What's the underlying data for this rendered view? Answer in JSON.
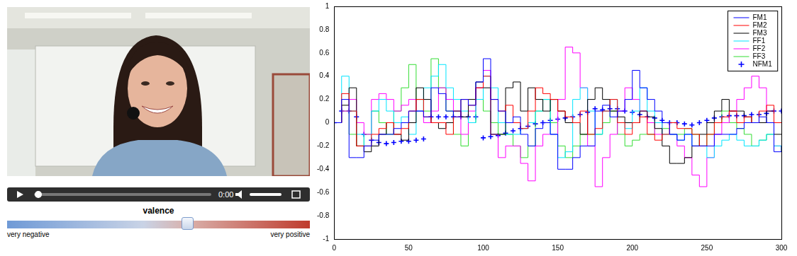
{
  "chart_data": {
    "type": "line",
    "x": [
      0,
      5,
      10,
      15,
      20,
      25,
      30,
      35,
      40,
      45,
      50,
      55,
      60,
      65,
      70,
      75,
      80,
      85,
      90,
      95,
      100,
      105,
      110,
      115,
      120,
      125,
      130,
      135,
      140,
      145,
      150,
      155,
      160,
      165,
      170,
      175,
      180,
      185,
      190,
      195,
      200,
      205,
      210,
      215,
      220,
      225,
      230,
      235,
      240,
      245,
      250,
      255,
      260,
      265,
      270,
      275,
      280,
      285,
      290,
      295,
      300
    ],
    "series": [
      {
        "name": "FM1",
        "color": "#0000ff",
        "line_style": "steps",
        "values": [
          0,
          0.2,
          -0.3,
          -0.3,
          -0.2,
          -0.15,
          -0.1,
          -0.1,
          -0.05,
          0,
          0.1,
          0.1,
          0.05,
          0.3,
          0.25,
          0.1,
          0.05,
          0.2,
          0.15,
          0.35,
          0.55,
          0.2,
          0.1,
          0,
          0.05,
          -0.1,
          -0.2,
          -0.05,
          0,
          -0.1,
          -0.4,
          -0.4,
          -0.3,
          -0.2,
          -0.2,
          0.1,
          0.15,
          0.05,
          0.1,
          0.2,
          0.45,
          0.3,
          0.2,
          0.1,
          0,
          -0.1,
          -0.15,
          -0.1,
          -0.2,
          -0.2,
          -0.2,
          -0.1,
          -0.1,
          -0.1,
          -0.05,
          0,
          0,
          0.05,
          0,
          -0.25,
          -0.2
        ]
      },
      {
        "name": "FM2",
        "color": "#ff0000",
        "line_style": "steps",
        "values": [
          0,
          0.25,
          0.1,
          -0.2,
          -0.2,
          -0.1,
          -0.05,
          0,
          -0.1,
          -0.05,
          0.1,
          0.2,
          0.05,
          0,
          0,
          -0.1,
          0.05,
          0.2,
          0.15,
          0.3,
          0.4,
          0.2,
          0.1,
          0.15,
          0,
          -0.05,
          0.1,
          0.3,
          0.25,
          0.2,
          0.1,
          0.05,
          0,
          0.1,
          -0.1,
          -0.05,
          0.1,
          0.2,
          0,
          -0.1,
          0,
          0.05,
          -0.1,
          -0.15,
          -0.1,
          0,
          -0.05,
          -0.05,
          -0.1,
          -0.2,
          -0.1,
          0,
          0.05,
          0.1,
          0,
          0.05,
          0,
          0.1,
          0.15,
          0,
          0
        ]
      },
      {
        "name": "FM3",
        "color": "#000000",
        "line_style": "steps",
        "values": [
          0,
          0.15,
          0.3,
          -0.2,
          -0.25,
          -0.2,
          -0.1,
          0,
          -0.1,
          -0.15,
          0,
          0.3,
          0.2,
          0,
          -0.05,
          0,
          0.1,
          0.05,
          0.2,
          0.35,
          0.3,
          -0.1,
          -0.1,
          0.3,
          0.35,
          0.1,
          0.3,
          0.2,
          0.1,
          0.2,
          0.1,
          0,
          0,
          -0.1,
          0.2,
          0.3,
          0.2,
          0.1,
          0.05,
          0,
          0,
          0.1,
          0.05,
          -0.05,
          -0.2,
          -0.35,
          -0.35,
          -0.3,
          -0.2,
          -0.1,
          0,
          0.1,
          0.2,
          0.1,
          0.1,
          0.05,
          0,
          0,
          0.1,
          -0.1,
          -0.1
        ]
      },
      {
        "name": "FF1",
        "color": "#00e5ff",
        "line_style": "steps",
        "values": [
          0,
          0.4,
          0.1,
          -0.1,
          -0.2,
          0.1,
          0.2,
          0.1,
          0,
          0.05,
          -0.1,
          0.1,
          0.3,
          0.4,
          0.5,
          0.3,
          0.2,
          0.1,
          0,
          0.2,
          0.4,
          0.3,
          0,
          -0.1,
          -0.1,
          -0.05,
          0,
          0.1,
          0.2,
          -0.1,
          -0.3,
          -0.25,
          0.2,
          0.3,
          0.1,
          -0.1,
          0.1,
          0.2,
          0,
          -0.05,
          0.1,
          0.3,
          0.1,
          0,
          -0.1,
          -0.1,
          -0.15,
          -0.1,
          -0.2,
          -0.2,
          -0.3,
          -0.2,
          -0.15,
          -0.1,
          -0.15,
          -0.2,
          -0.2,
          -0.15,
          -0.1,
          -0.2,
          -0.2
        ]
      },
      {
        "name": "FF2",
        "color": "#ff00ff",
        "line_style": "steps",
        "values": [
          0,
          0.1,
          0.2,
          0,
          -0.1,
          0.2,
          0.25,
          0.2,
          0.1,
          0.15,
          0.2,
          0.1,
          0,
          0.1,
          0.3,
          0.2,
          0.1,
          -0.1,
          0.1,
          0.3,
          0.45,
          -0.1,
          -0.3,
          -0.2,
          -0.2,
          -0.35,
          -0.5,
          -0.2,
          -0.1,
          -0.1,
          0.2,
          0.65,
          0.6,
          0.3,
          -0.2,
          -0.55,
          -0.3,
          -0.1,
          0.1,
          0.3,
          0.2,
          0.1,
          0,
          -0.1,
          0,
          -0.1,
          -0.2,
          -0.3,
          -0.45,
          -0.55,
          -0.3,
          -0.1,
          0,
          0.1,
          0.2,
          0.3,
          0.4,
          0.3,
          0.1,
          -0.2,
          -0.2
        ]
      },
      {
        "name": "FF3",
        "color": "#33dd33",
        "line_style": "steps",
        "values": [
          0,
          0.1,
          -0.1,
          -0.2,
          -0.1,
          0.1,
          0,
          -0.1,
          0.1,
          0.3,
          0.5,
          0.2,
          0.1,
          0.55,
          0.3,
          0.1,
          -0.1,
          -0.2,
          0,
          0.3,
          0.1,
          0,
          -0.1,
          -0.1,
          -0.2,
          -0.3,
          -0.2,
          0.1,
          0.2,
          0,
          -0.2,
          -0.3,
          -0.2,
          -0.1,
          -0.1,
          -0.1,
          0,
          0.1,
          -0.1,
          -0.2,
          -0.15,
          -0.1,
          -0.1,
          0,
          -0.05,
          -0.1,
          -0.1,
          -0.05,
          -0.1,
          -0.2,
          -0.1,
          0,
          0.1,
          0,
          -0.05,
          -0.1,
          -0.2,
          -0.15,
          -0.1,
          -0.2,
          -0.25
        ]
      },
      {
        "name": "NFM1",
        "color": "#0000ff",
        "line_style": "none",
        "marker": "plus",
        "values": [
          0,
          0.1,
          0.1,
          0.05,
          -0.1,
          -0.15,
          -0.17,
          -0.18,
          -0.17,
          -0.16,
          -0.16,
          -0.15,
          -0.14,
          0.05,
          0.05,
          0.05,
          0.05,
          0.05,
          0.05,
          0.05,
          -0.13,
          -0.12,
          -0.11,
          -0.09,
          -0.07,
          -0.05,
          -0.03,
          -0.01,
          0,
          0.02,
          0.03,
          0.04,
          0.05,
          0.07,
          0.09,
          0.12,
          0.11,
          0.12,
          0.12,
          0.1,
          0.09,
          0.07,
          0.05,
          0.04,
          0.02,
          0,
          0,
          -0.01,
          -0.02,
          0,
          0.02,
          0.04,
          0.05,
          0.06,
          0.06,
          0.06,
          0.07,
          0.07,
          0.08,
          0.1,
          0.1
        ]
      }
    ],
    "xlim": [
      0,
      300
    ],
    "xticks": [
      0,
      50,
      100,
      150,
      200,
      250,
      300
    ],
    "ylim": [
      -1,
      1
    ],
    "yticks": [
      -1,
      -0.8,
      -0.6,
      -0.4,
      -0.2,
      0,
      0.2,
      0.4,
      0.6,
      0.8,
      1
    ],
    "grid": false,
    "legend": "upper right"
  },
  "player": {
    "time": "0:00",
    "slider_title": "valence",
    "min_label": "very negative",
    "max_label": "very positive"
  }
}
